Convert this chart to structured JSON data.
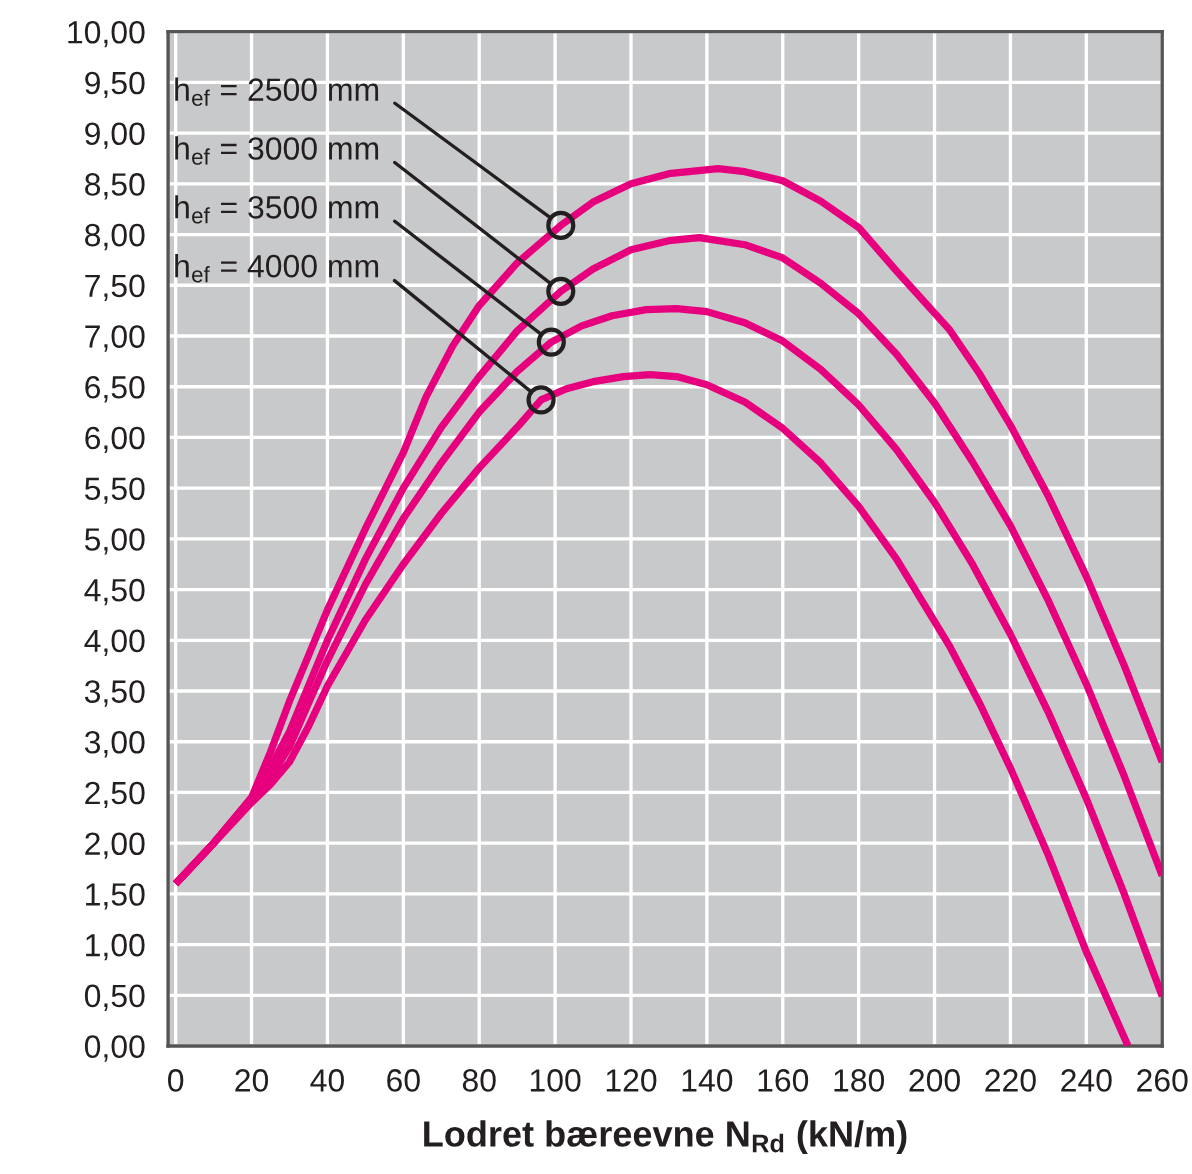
{
  "chart_data": {
    "type": "line",
    "xlabel": "Lodret bæreevne N$_{Rd}$ (kN/m)",
    "xlim": [
      -2,
      260
    ],
    "xticks": [
      0,
      20,
      40,
      60,
      80,
      100,
      120,
      140,
      160,
      180,
      200,
      220,
      240,
      260
    ],
    "ylim": [
      0,
      10
    ],
    "yticks": [
      {
        "value": 0,
        "label": "0,00"
      },
      {
        "value": 0.5,
        "label": "0,50"
      },
      {
        "value": 1,
        "label": "1,00"
      },
      {
        "value": 1.5,
        "label": "1,50"
      },
      {
        "value": 2,
        "label": "2,00"
      },
      {
        "value": 2.5,
        "label": "2,50"
      },
      {
        "value": 3,
        "label": "3,00"
      },
      {
        "value": 3.5,
        "label": "3,50"
      },
      {
        "value": 4,
        "label": "4,00"
      },
      {
        "value": 4.5,
        "label": "4,50"
      },
      {
        "value": 5,
        "label": "5,00"
      },
      {
        "value": 5.5,
        "label": "5,50"
      },
      {
        "value": 6,
        "label": "6,00"
      },
      {
        "value": 6.5,
        "label": "6,50"
      },
      {
        "value": 7,
        "label": "7,00"
      },
      {
        "value": 7.5,
        "label": "7,50"
      },
      {
        "value": 8,
        "label": "8,00"
      },
      {
        "value": 8.5,
        "label": "8,50"
      },
      {
        "value": 9,
        "label": "9,00"
      },
      {
        "value": 9.5,
        "label": "9,50"
      },
      {
        "value": 10,
        "label": "10,00"
      }
    ],
    "grid": true,
    "legend": false,
    "marker": "none",
    "line_style": "solid",
    "series": [
      {
        "color": "#e6007e",
        "x": [
          0,
          10,
          20,
          25,
          30,
          35,
          40,
          50,
          60,
          66,
          73,
          80,
          90,
          101.5,
          110,
          120,
          130,
          143,
          150,
          160,
          170,
          180,
          190,
          204,
          212,
          220,
          230,
          240,
          250,
          260
        ],
        "values": [
          1.6,
          2.0,
          2.45,
          2.9,
          3.4,
          3.85,
          4.3,
          5.1,
          5.85,
          6.4,
          6.9,
          7.3,
          7.72,
          8.09,
          8.32,
          8.5,
          8.6,
          8.65,
          8.62,
          8.53,
          8.33,
          8.07,
          7.64,
          7.06,
          6.62,
          6.12,
          5.42,
          4.63,
          3.75,
          2.8
        ]
      },
      {
        "color": "#e6007e",
        "x": [
          0,
          10,
          20,
          25,
          30,
          35,
          40,
          50,
          60,
          70,
          80,
          90,
          101.5,
          110,
          120,
          130,
          138,
          150,
          160,
          170,
          180,
          190,
          200,
          210,
          220,
          230,
          240,
          250,
          260
        ],
        "values": [
          1.6,
          2.0,
          2.45,
          2.75,
          3.1,
          3.55,
          4.0,
          4.8,
          5.5,
          6.1,
          6.6,
          7.05,
          7.44,
          7.66,
          7.85,
          7.94,
          7.97,
          7.9,
          7.77,
          7.52,
          7.22,
          6.82,
          6.34,
          5.76,
          5.13,
          4.39,
          3.57,
          2.66,
          1.68
        ]
      },
      {
        "color": "#e6007e",
        "x": [
          0,
          10,
          20,
          25,
          30,
          35,
          40,
          50,
          60,
          70,
          80,
          90,
          99,
          107,
          115,
          124,
          132,
          140,
          150,
          160,
          170,
          180,
          190,
          200,
          210,
          220,
          230,
          240,
          250,
          260
        ],
        "values": [
          1.6,
          2.0,
          2.42,
          2.65,
          2.95,
          3.38,
          3.8,
          4.55,
          5.2,
          5.75,
          6.25,
          6.65,
          6.94,
          7.1,
          7.2,
          7.26,
          7.27,
          7.24,
          7.13,
          6.95,
          6.67,
          6.32,
          5.88,
          5.36,
          4.75,
          4.06,
          3.29,
          2.44,
          1.5,
          0.49
        ]
      },
      {
        "color": "#e6007e",
        "x": [
          0,
          10,
          20,
          25,
          30,
          35,
          40,
          50,
          60,
          70,
          80,
          90,
          96.3,
          103,
          110,
          118,
          125,
          132,
          140,
          150,
          160,
          170,
          180,
          190,
          204,
          212,
          220,
          230,
          240,
          251
        ],
        "values": [
          1.6,
          2.0,
          2.4,
          2.58,
          2.8,
          3.15,
          3.55,
          4.2,
          4.75,
          5.25,
          5.7,
          6.1,
          6.37,
          6.48,
          6.55,
          6.6,
          6.62,
          6.6,
          6.52,
          6.35,
          6.09,
          5.75,
          5.32,
          4.8,
          3.94,
          3.37,
          2.74,
          1.88,
          0.93,
          0
        ]
      }
    ],
    "annotations": [
      {
        "text": "h$_{ef}$ = 2500 mm",
        "x": 101.5,
        "y": 8.09
      },
      {
        "text": "h$_{ef}$ = 3000 mm",
        "x": 101.5,
        "y": 7.44
      },
      {
        "text": "h$_{ef}$ = 3500 mm",
        "x": 99,
        "y": 6.94
      },
      {
        "text": "h$_{ef}$ = 4000 mm",
        "x": 96.3,
        "y": 6.37
      }
    ]
  }
}
